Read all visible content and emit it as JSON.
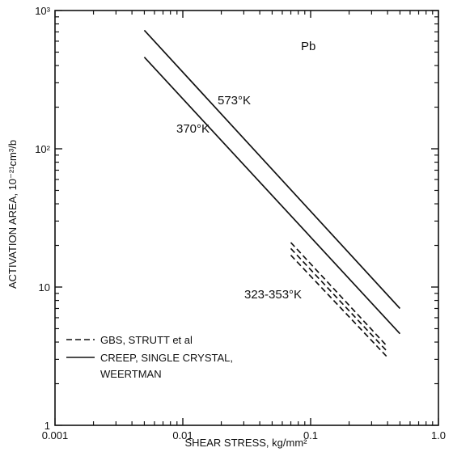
{
  "chart_data": {
    "type": "line",
    "xscale": "log",
    "yscale": "log",
    "xlim": [
      0.001,
      1.0
    ],
    "ylim": [
      1,
      1000
    ],
    "xlabel": "SHEAR STRESS, kg/mm²",
    "ylabel": "ACTIVATION AREA, 10⁻²¹cm³/b",
    "x_ticks": [
      "0.001",
      "0.01",
      "0.1",
      "1.0"
    ],
    "y_ticks": [
      "1",
      "10",
      "10²",
      "10³"
    ],
    "panel_label": "Pb",
    "series": [
      {
        "label": "573°K",
        "style": "solid",
        "points": [
          {
            "x": 0.005,
            "y": 720
          },
          {
            "x": 0.5,
            "y": 7.0
          }
        ]
      },
      {
        "label": "370°K",
        "style": "solid",
        "points": [
          {
            "x": 0.005,
            "y": 460
          },
          {
            "x": 0.5,
            "y": 4.6
          }
        ]
      },
      {
        "label": "323-353°K",
        "style": "dashed",
        "points": [
          {
            "x": 0.07,
            "y": 21
          },
          {
            "x": 0.4,
            "y": 3.7
          }
        ]
      },
      {
        "label": "323-353°K",
        "style": "dashed",
        "points": [
          {
            "x": 0.07,
            "y": 19
          },
          {
            "x": 0.4,
            "y": 3.4
          }
        ]
      },
      {
        "label": "323-353°K",
        "style": "dashed",
        "points": [
          {
            "x": 0.07,
            "y": 17
          },
          {
            "x": 0.4,
            "y": 3.1
          }
        ]
      }
    ],
    "legend": [
      {
        "style": "dashed",
        "text": "GBS, STRUTT et al"
      },
      {
        "style": "solid",
        "text": "CREEP, SINGLE CRYSTAL,",
        "text2": "WEERTMAN"
      }
    ]
  }
}
